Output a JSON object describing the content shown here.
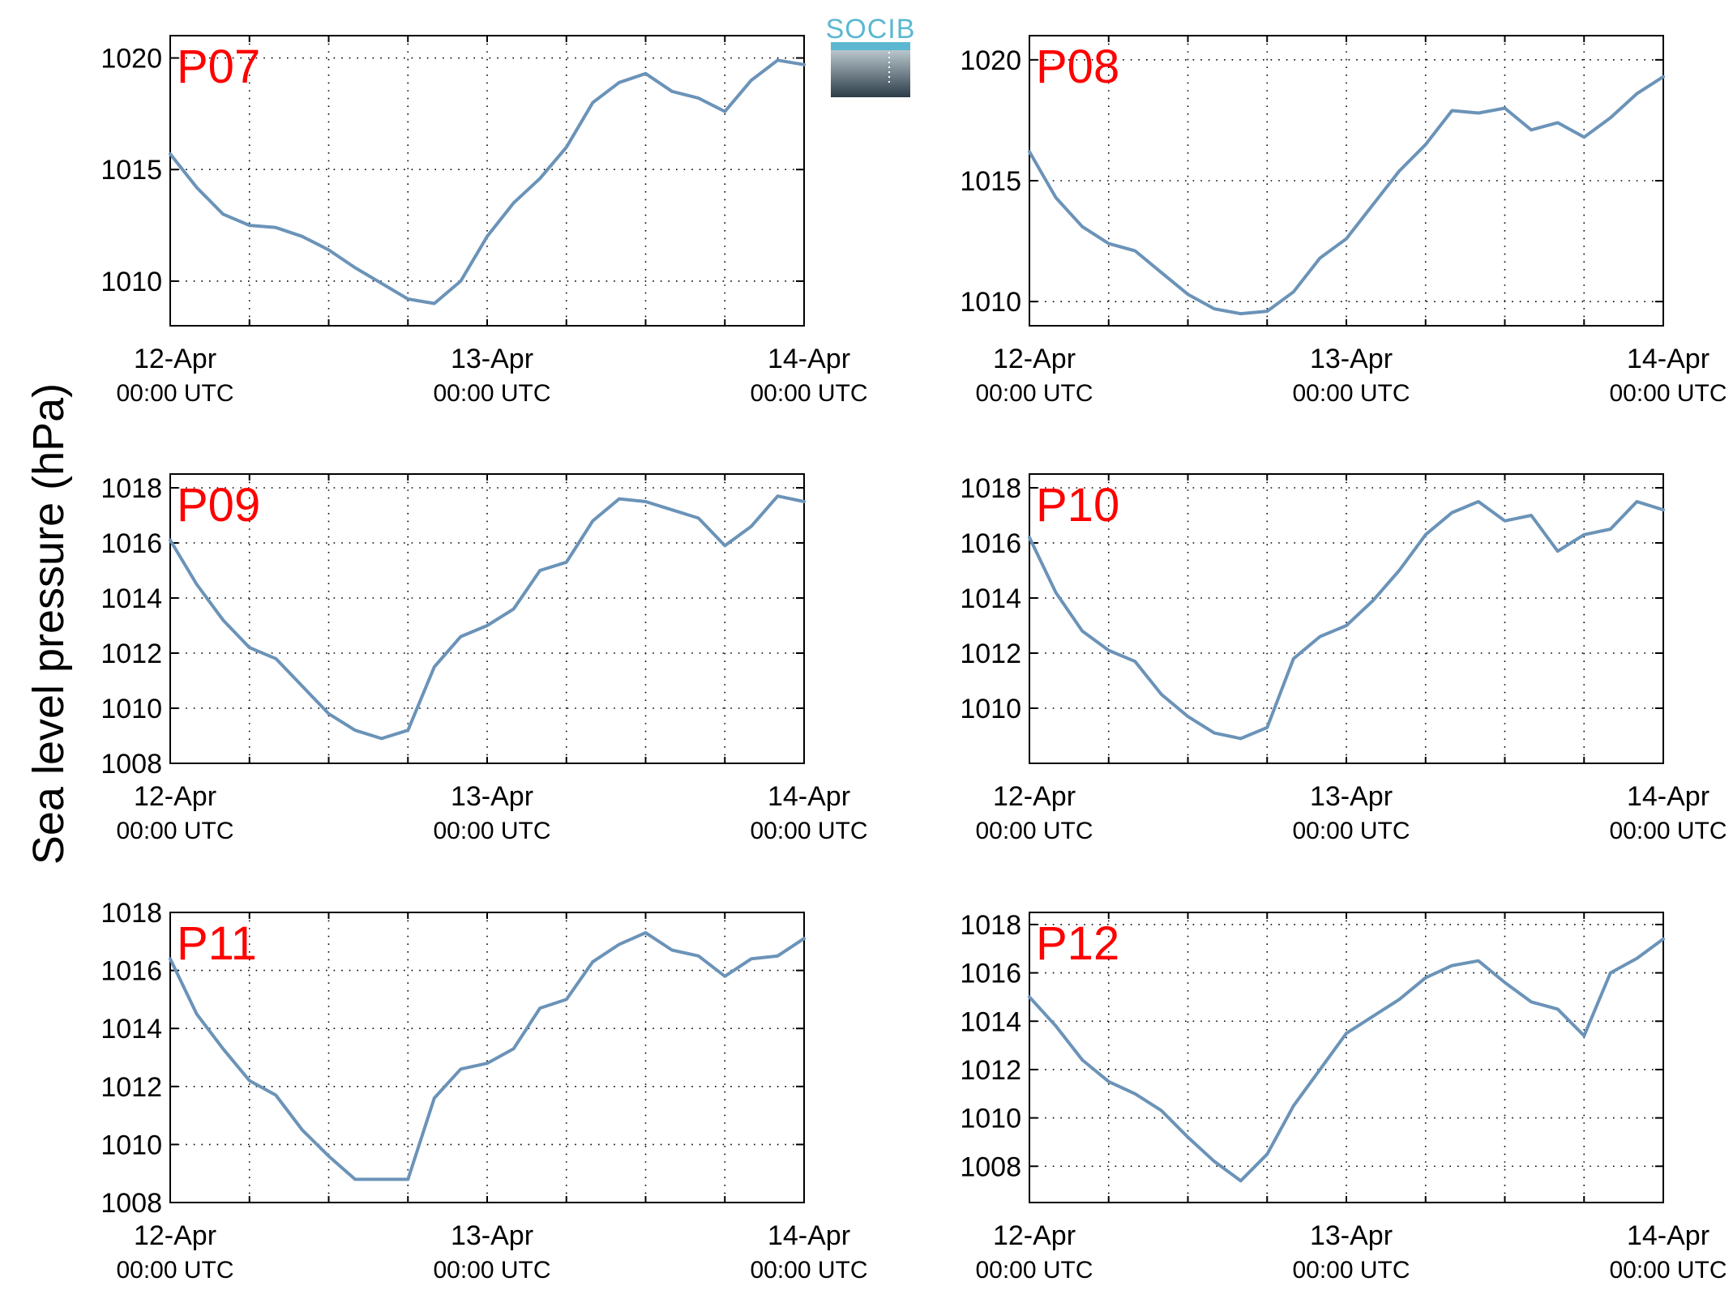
{
  "figure": {
    "ylabel": "Sea level pressure (hPa)",
    "logo_text": "SOCIB",
    "line_color": "#6b93b8",
    "label_color": "#ff0000"
  },
  "chart_data": [
    {
      "type": "line",
      "series": [
        {
          "name": "P07",
          "x": [
            0,
            2,
            4,
            6,
            8,
            10,
            12,
            14,
            16,
            18,
            20,
            22,
            24,
            26,
            28,
            30,
            32,
            34,
            36,
            38,
            40,
            42,
            44,
            46,
            48
          ],
          "y": [
            1015.7,
            1014.2,
            1013.0,
            1012.5,
            1012.4,
            1012.0,
            1011.4,
            1010.6,
            1009.9,
            1009.2,
            1009.0,
            1010.0,
            1012.0,
            1013.5,
            1014.6,
            1016.0,
            1018.0,
            1018.9,
            1019.3,
            1018.5,
            1018.2,
            1017.6,
            1019.0,
            1019.9,
            1019.7
          ]
        }
      ],
      "xlim": [
        0,
        48
      ],
      "ylim": [
        1008,
        1021
      ],
      "yticks": [
        1010,
        1015,
        1020
      ],
      "xticks": [
        {
          "date": "12-Apr",
          "time": "00:00 UTC"
        },
        {
          "date": "13-Apr",
          "time": "00:00 UTC"
        },
        {
          "date": "14-Apr",
          "time": "00:00 UTC"
        }
      ],
      "grid": true
    },
    {
      "type": "line",
      "series": [
        {
          "name": "P08",
          "x": [
            0,
            2,
            4,
            6,
            8,
            10,
            12,
            14,
            16,
            18,
            20,
            22,
            24,
            26,
            28,
            30,
            32,
            34,
            36,
            38,
            40,
            42,
            44,
            46,
            48
          ],
          "y": [
            1016.2,
            1014.3,
            1013.1,
            1012.4,
            1012.1,
            1011.2,
            1010.3,
            1009.7,
            1009.5,
            1009.6,
            1010.4,
            1011.8,
            1012.6,
            1014.0,
            1015.4,
            1016.5,
            1017.9,
            1017.8,
            1018.0,
            1017.1,
            1017.4,
            1016.8,
            1017.6,
            1018.6,
            1019.3
          ]
        }
      ],
      "xlim": [
        0,
        48
      ],
      "ylim": [
        1009,
        1021
      ],
      "yticks": [
        1010,
        1015,
        1020
      ],
      "xticks": [
        {
          "date": "12-Apr",
          "time": "00:00 UTC"
        },
        {
          "date": "13-Apr",
          "time": "00:00 UTC"
        },
        {
          "date": "14-Apr",
          "time": "00:00 UTC"
        }
      ],
      "grid": true
    },
    {
      "type": "line",
      "series": [
        {
          "name": "P09",
          "x": [
            0,
            2,
            4,
            6,
            8,
            10,
            12,
            14,
            16,
            18,
            20,
            22,
            24,
            26,
            28,
            30,
            32,
            34,
            36,
            38,
            40,
            42,
            44,
            46,
            48
          ],
          "y": [
            1016.1,
            1014.5,
            1013.2,
            1012.2,
            1011.8,
            1010.8,
            1009.8,
            1009.2,
            1008.9,
            1009.2,
            1011.5,
            1012.6,
            1013.0,
            1013.6,
            1015.0,
            1015.3,
            1016.8,
            1017.6,
            1017.5,
            1017.2,
            1016.9,
            1015.9,
            1016.6,
            1017.7,
            1017.5
          ]
        }
      ],
      "xlim": [
        0,
        48
      ],
      "ylim": [
        1008,
        1018.5
      ],
      "yticks": [
        1008,
        1010,
        1012,
        1014,
        1016,
        1018
      ],
      "xticks": [
        {
          "date": "12-Apr",
          "time": "00:00 UTC"
        },
        {
          "date": "13-Apr",
          "time": "00:00 UTC"
        },
        {
          "date": "14-Apr",
          "time": "00:00 UTC"
        }
      ],
      "grid": true
    },
    {
      "type": "line",
      "series": [
        {
          "name": "P10",
          "x": [
            0,
            2,
            4,
            6,
            8,
            10,
            12,
            14,
            16,
            18,
            20,
            22,
            24,
            26,
            28,
            30,
            32,
            34,
            36,
            38,
            40,
            42,
            44,
            46,
            48
          ],
          "y": [
            1016.2,
            1014.2,
            1012.8,
            1012.1,
            1011.7,
            1010.5,
            1009.7,
            1009.1,
            1008.9,
            1009.3,
            1011.8,
            1012.6,
            1013.0,
            1013.9,
            1015.0,
            1016.3,
            1017.1,
            1017.5,
            1016.8,
            1017.0,
            1015.7,
            1016.3,
            1016.5,
            1017.5,
            1017.2
          ]
        }
      ],
      "xlim": [
        0,
        48
      ],
      "ylim": [
        1008,
        1018.5
      ],
      "yticks": [
        1010,
        1012,
        1014,
        1016,
        1018
      ],
      "xticks": [
        {
          "date": "12-Apr",
          "time": "00:00 UTC"
        },
        {
          "date": "13-Apr",
          "time": "00:00 UTC"
        },
        {
          "date": "14-Apr",
          "time": "00:00 UTC"
        }
      ],
      "grid": true
    },
    {
      "type": "line",
      "series": [
        {
          "name": "P11",
          "x": [
            0,
            2,
            4,
            6,
            8,
            10,
            12,
            14,
            16,
            18,
            20,
            22,
            24,
            26,
            28,
            30,
            32,
            34,
            36,
            38,
            40,
            42,
            44,
            46,
            48
          ],
          "y": [
            1016.4,
            1014.5,
            1013.3,
            1012.2,
            1011.7,
            1010.5,
            1009.6,
            1008.8,
            1008.8,
            1008.8,
            1011.6,
            1012.6,
            1012.8,
            1013.3,
            1014.7,
            1015.0,
            1016.3,
            1016.9,
            1017.3,
            1016.7,
            1016.5,
            1015.8,
            1016.4,
            1016.5,
            1017.1
          ]
        }
      ],
      "xlim": [
        0,
        48
      ],
      "ylim": [
        1008,
        1018
      ],
      "yticks": [
        1008,
        1010,
        1012,
        1014,
        1016,
        1018
      ],
      "xticks": [
        {
          "date": "12-Apr",
          "time": "00:00 UTC"
        },
        {
          "date": "13-Apr",
          "time": "00:00 UTC"
        },
        {
          "date": "14-Apr",
          "time": "00:00 UTC"
        }
      ],
      "grid": true
    },
    {
      "type": "line",
      "series": [
        {
          "name": "P12",
          "x": [
            0,
            2,
            4,
            6,
            8,
            10,
            12,
            14,
            16,
            18,
            20,
            22,
            24,
            26,
            28,
            30,
            32,
            34,
            36,
            38,
            40,
            42,
            44,
            46,
            48
          ],
          "y": [
            1015.0,
            1013.8,
            1012.4,
            1011.5,
            1011.0,
            1010.3,
            1009.2,
            1008.2,
            1007.4,
            1008.5,
            1010.5,
            1012.0,
            1013.5,
            1014.2,
            1014.9,
            1015.8,
            1016.3,
            1016.5,
            1015.6,
            1014.8,
            1014.5,
            1013.4,
            1016.0,
            1016.6,
            1017.4
          ]
        }
      ],
      "xlim": [
        0,
        48
      ],
      "ylim": [
        1006.5,
        1018.5
      ],
      "yticks": [
        1008,
        1010,
        1012,
        1014,
        1016,
        1018
      ],
      "xticks": [
        {
          "date": "12-Apr",
          "time": "00:00 UTC"
        },
        {
          "date": "13-Apr",
          "time": "00:00 UTC"
        },
        {
          "date": "14-Apr",
          "time": "00:00 UTC"
        }
      ],
      "grid": true
    }
  ]
}
